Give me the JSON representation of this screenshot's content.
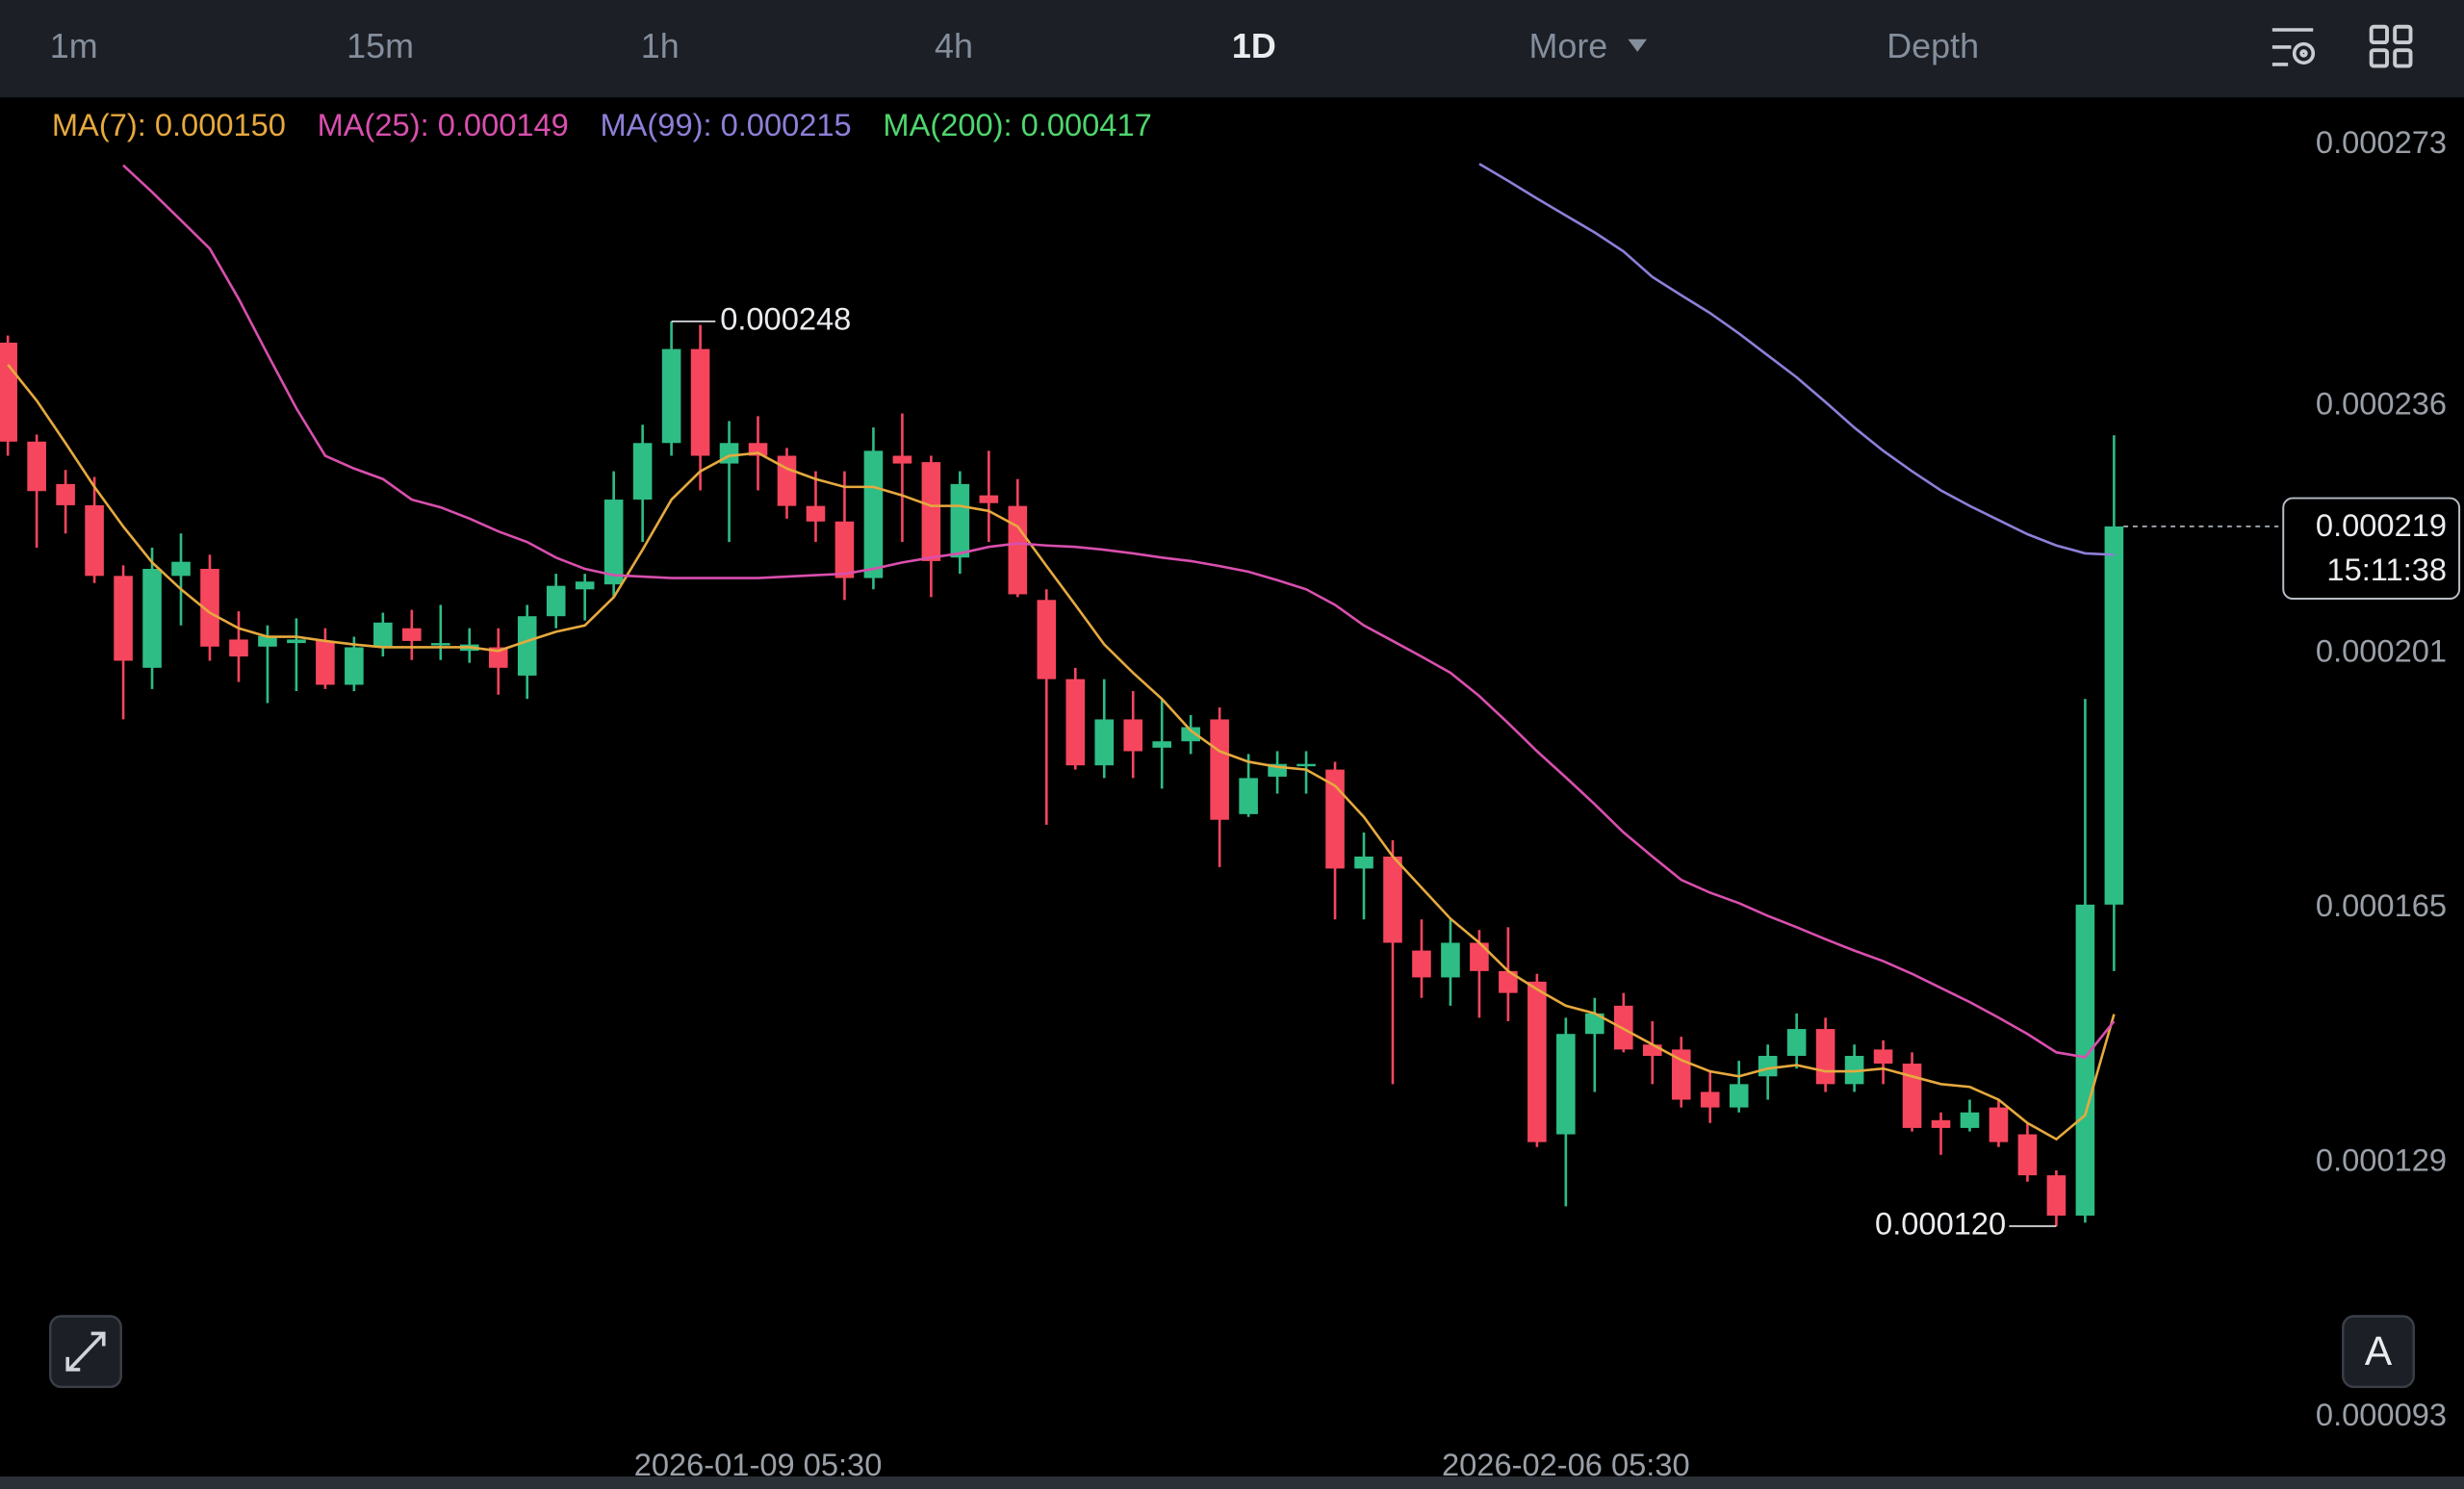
{
  "toolbar": {
    "tabs": [
      "1m",
      "15m",
      "1h",
      "4h",
      "1D",
      "More",
      "Depth"
    ],
    "active": "1D"
  },
  "chart_data": {
    "type": "candlestick",
    "categories": [
      null,
      null,
      null,
      null,
      null,
      null,
      null,
      null,
      null,
      null,
      null,
      null,
      null,
      null,
      null,
      null,
      null,
      null,
      null,
      null,
      null,
      null,
      null,
      null,
      null,
      null,
      "2026-01-09 05:30",
      null,
      null,
      null,
      null,
      null,
      null,
      null,
      null,
      null,
      null,
      null,
      null,
      null,
      null,
      null,
      null,
      null,
      null,
      null,
      null,
      null,
      null,
      null,
      null,
      null,
      null,
      null,
      "2026-02-06 05:30",
      null,
      null,
      null,
      null,
      null,
      null,
      null,
      null,
      null,
      null,
      null,
      null,
      null,
      null,
      null,
      null,
      null,
      null,
      null
    ],
    "candles": {
      "open": [
        0.000245,
        0.000231,
        0.000225,
        0.000222,
        0.000212,
        0.000199,
        0.000212,
        0.000213,
        0.000203,
        0.000202,
        0.0002025,
        0.0002028,
        0.0001966,
        0.0002019,
        0.0002046,
        0.0002023,
        0.0002014,
        0.0002019,
        0.0001979,
        0.0002063,
        0.0002101,
        0.0002108,
        0.0002228,
        0.0002308,
        0.0002441,
        0.0002279,
        0.0002308,
        0.000229,
        0.0002219,
        0.0002197,
        0.0002117,
        0.000229,
        0.0002281,
        0.0002146,
        0.0002234,
        0.0002219,
        0.0002086,
        0.0001974,
        0.0001852,
        0.0001917,
        0.0001877,
        0.0001886,
        0.0001917,
        0.0001783,
        0.0001836,
        0.0001852,
        0.0001846,
        0.0001706,
        0.0001723,
        0.000159,
        0.0001552,
        0.0001601,
        0.0001561,
        0.0001546,
        0.000133,
        0.0001472,
        0.0001512,
        0.0001457,
        0.000145,
        0.000139,
        0.0001368,
        0.0001412,
        0.0001441,
        0.0001479,
        0.0001401,
        0.000145,
        0.000143,
        0.000135,
        0.0001339,
        0.0001368,
        0.000133,
        0.0001272,
        0.0001215,
        0.0001655
      ],
      "high": [
        0.000246,
        0.000232,
        0.000227,
        0.000226,
        0.0002135,
        0.000216,
        0.000218,
        0.000215,
        0.000207,
        0.000205,
        0.000206,
        0.0002046,
        0.0002034,
        0.0002068,
        0.0002072,
        0.0002079,
        0.0002046,
        0.0002046,
        0.0002079,
        0.0002123,
        0.0002123,
        0.0002268,
        0.0002334,
        0.000248,
        0.0002475,
        0.0002339,
        0.0002346,
        0.0002301,
        0.0002268,
        0.0002268,
        0.000233,
        0.000235,
        0.000229,
        0.0002268,
        0.0002297,
        0.0002257,
        0.0002101,
        0.000199,
        0.0001974,
        0.0001957,
        0.0001946,
        0.0001923,
        0.0001934,
        0.0001868,
        0.0001872,
        0.0001872,
        0.0001857,
        0.0001757,
        0.0001746,
        0.0001634,
        0.0001634,
        0.0001619,
        0.0001623,
        0.0001557,
        0.0001495,
        0.0001523,
        0.000153,
        0.000149,
        0.0001468,
        0.0001419,
        0.0001434,
        0.0001457,
        0.0001501,
        0.0001495,
        0.0001457,
        0.0001463,
        0.0001446,
        0.0001361,
        0.0001379,
        0.0001379,
        0.0001346,
        0.0001279,
        0.0001946,
        0.0002319
      ],
      "low": [
        0.000229,
        0.000216,
        0.000218,
        0.000211,
        0.0001917,
        0.000196,
        0.000205,
        0.0002,
        0.000197,
        0.000194,
        0.0001957,
        0.000196,
        0.0001957,
        0.0002006,
        0.0002001,
        0.0002001,
        0.0001997,
        0.0001952,
        0.0001946,
        0.0002046,
        0.0002057,
        0.000209,
        0.0002168,
        0.000229,
        0.0002241,
        0.0002168,
        0.0002241,
        0.0002201,
        0.0002168,
        0.0002086,
        0.0002101,
        0.0002168,
        0.000209,
        0.0002123,
        0.0002168,
        0.000209,
        0.0001768,
        0.0001846,
        0.0001834,
        0.0001834,
        0.0001819,
        0.0001868,
        0.0001708,
        0.0001779,
        0.0001812,
        0.0001812,
        0.0001634,
        0.0001634,
        0.0001401,
        0.0001523,
        0.0001512,
        0.0001495,
        0.000149,
        0.0001312,
        0.0001228,
        0.000139,
        0.0001446,
        0.0001401,
        0.0001368,
        0.0001346,
        0.0001361,
        0.0001379,
        0.0001423,
        0.000139,
        0.000139,
        0.0001401,
        0.0001334,
        0.0001301,
        0.0001334,
        0.0001312,
        0.0001263,
        0.00012,
        0.0001205,
        0.0001561
      ],
      "close": [
        0.000231,
        0.000224,
        0.000222,
        0.000212,
        0.0002,
        0.000213,
        0.000214,
        0.000202,
        0.0002006,
        0.0002035,
        0.000203,
        0.0001966,
        0.0002019,
        0.0002054,
        0.0002028,
        0.0002025,
        0.0002023,
        0.000199,
        0.0002063,
        0.0002106,
        0.0002112,
        0.0002228,
        0.0002308,
        0.0002441,
        0.000229,
        0.0002308,
        0.000229,
        0.0002219,
        0.0002197,
        0.0002117,
        0.0002297,
        0.0002279,
        0.0002141,
        0.000225,
        0.0002223,
        0.0002094,
        0.0001974,
        0.0001852,
        0.0001917,
        0.0001872,
        0.0001886,
        0.0001906,
        0.0001775,
        0.0001834,
        0.0001854,
        0.0001854,
        0.0001706,
        0.0001723,
        0.0001601,
        0.0001552,
        0.0001601,
        0.0001561,
        0.000153,
        0.0001319,
        0.0001472,
        0.0001501,
        0.000145,
        0.0001441,
        0.0001379,
        0.0001368,
        0.0001401,
        0.0001441,
        0.0001479,
        0.0001401,
        0.0001441,
        0.000143,
        0.0001339,
        0.0001339,
        0.0001361,
        0.0001319,
        0.0001272,
        0.0001215,
        0.0001655,
        0.000219
      ]
    },
    "up_color": "#2ebd85",
    "down_color": "#f6465d",
    "ma_lines": [
      {
        "name": "MA(7): 0.000150",
        "color": "#e6a93e",
        "values": [
          0.0002419,
          0.0002368,
          0.0002308,
          0.0002246,
          0.000219,
          0.0002139,
          0.0002101,
          0.0002068,
          0.0002046,
          0.0002034,
          0.0002034,
          0.0002028,
          0.0002023,
          0.0002019,
          0.0002019,
          0.0002019,
          0.0002019,
          0.0002014,
          0.0002028,
          0.0002041,
          0.000205,
          0.000209,
          0.0002157,
          0.0002228,
          0.0002268,
          0.000229,
          0.0002294,
          0.0002272,
          0.0002257,
          0.0002246,
          0.0002246,
          0.0002234,
          0.0002219,
          0.0002219,
          0.0002212,
          0.000219,
          0.0002134,
          0.0002079,
          0.0002023,
          0.0001983,
          0.0001946,
          0.0001901,
          0.0001872,
          0.0001857,
          0.000185,
          0.0001846,
          0.0001823,
          0.0001779,
          0.0001723,
          0.0001679,
          0.0001635,
          0.0001601,
          0.0001561,
          0.0001535,
          0.0001512,
          0.0001501,
          0.0001479,
          0.0001457,
          0.0001435,
          0.0001419,
          0.0001412,
          0.0001423,
          0.0001428,
          0.0001419,
          0.0001419,
          0.0001423,
          0.0001412,
          0.0001401,
          0.0001397,
          0.0001379,
          0.0001346,
          0.0001323,
          0.0001357,
          0.00015
        ]
      },
      {
        "name": "MA(25): 0.000149",
        "color": "#d94fae",
        "values": [
          null,
          null,
          null,
          null,
          0.0002701,
          0.0002663,
          0.0002623,
          0.0002583,
          0.0002512,
          0.0002434,
          0.0002357,
          0.000229,
          0.0002272,
          0.0002257,
          0.0002228,
          0.0002217,
          0.0002201,
          0.0002183,
          0.0002168,
          0.0002146,
          0.000213,
          0.0002121,
          0.0002119,
          0.0002117,
          0.0002117,
          0.0002117,
          0.0002117,
          0.0002119,
          0.0002121,
          0.0002123,
          0.000213,
          0.0002139,
          0.0002146,
          0.0002152,
          0.0002161,
          0.0002166,
          0.0002163,
          0.0002161,
          0.0002157,
          0.0002152,
          0.0002146,
          0.0002141,
          0.0002134,
          0.0002126,
          0.0002114,
          0.0002101,
          0.0002079,
          0.000205,
          0.0002028,
          0.0002006,
          0.0001983,
          0.000195,
          0.0001912,
          0.0001872,
          0.0001835,
          0.0001797,
          0.0001757,
          0.0001723,
          0.000169,
          0.0001672,
          0.0001657,
          0.0001639,
          0.0001623,
          0.0001606,
          0.000159,
          0.0001575,
          0.0001557,
          0.0001537,
          0.0001517,
          0.0001495,
          0.0001472,
          0.0001446,
          0.0001439,
          0.000149
        ]
      },
      {
        "name": "MA(99): 0.000215",
        "color": "#8f7fd9",
        "values": [
          null,
          null,
          null,
          null,
          null,
          null,
          null,
          null,
          null,
          null,
          null,
          null,
          null,
          null,
          null,
          null,
          null,
          null,
          null,
          null,
          null,
          null,
          null,
          null,
          null,
          null,
          null,
          null,
          null,
          null,
          null,
          null,
          null,
          null,
          null,
          null,
          null,
          null,
          null,
          null,
          null,
          null,
          null,
          null,
          null,
          null,
          null,
          null,
          null,
          null,
          null,
          0.0002703,
          0.0002679,
          0.0002654,
          0.000263,
          0.0002606,
          0.0002579,
          0.0002543,
          0.0002517,
          0.0002492,
          0.0002463,
          0.0002432,
          0.0002401,
          0.0002366,
          0.000233,
          0.0002297,
          0.0002268,
          0.0002241,
          0.0002219,
          0.0002199,
          0.0002179,
          0.0002163,
          0.0002152,
          0.000215
        ]
      },
      {
        "name": "MA(200): 0.000417",
        "color": "#4fd66e",
        "values": []
      }
    ],
    "ylim": [
      8.46e-05,
      0.0002797
    ],
    "yticks": [
      9.3e-05,
      0.000129,
      0.000165,
      0.000201,
      0.000236,
      0.000273
    ],
    "grid": false,
    "high_label": "0.000248",
    "low_label": "0.000120",
    "last_price": 0.000219,
    "countdown": "15:11:38"
  },
  "auto_button": "A"
}
